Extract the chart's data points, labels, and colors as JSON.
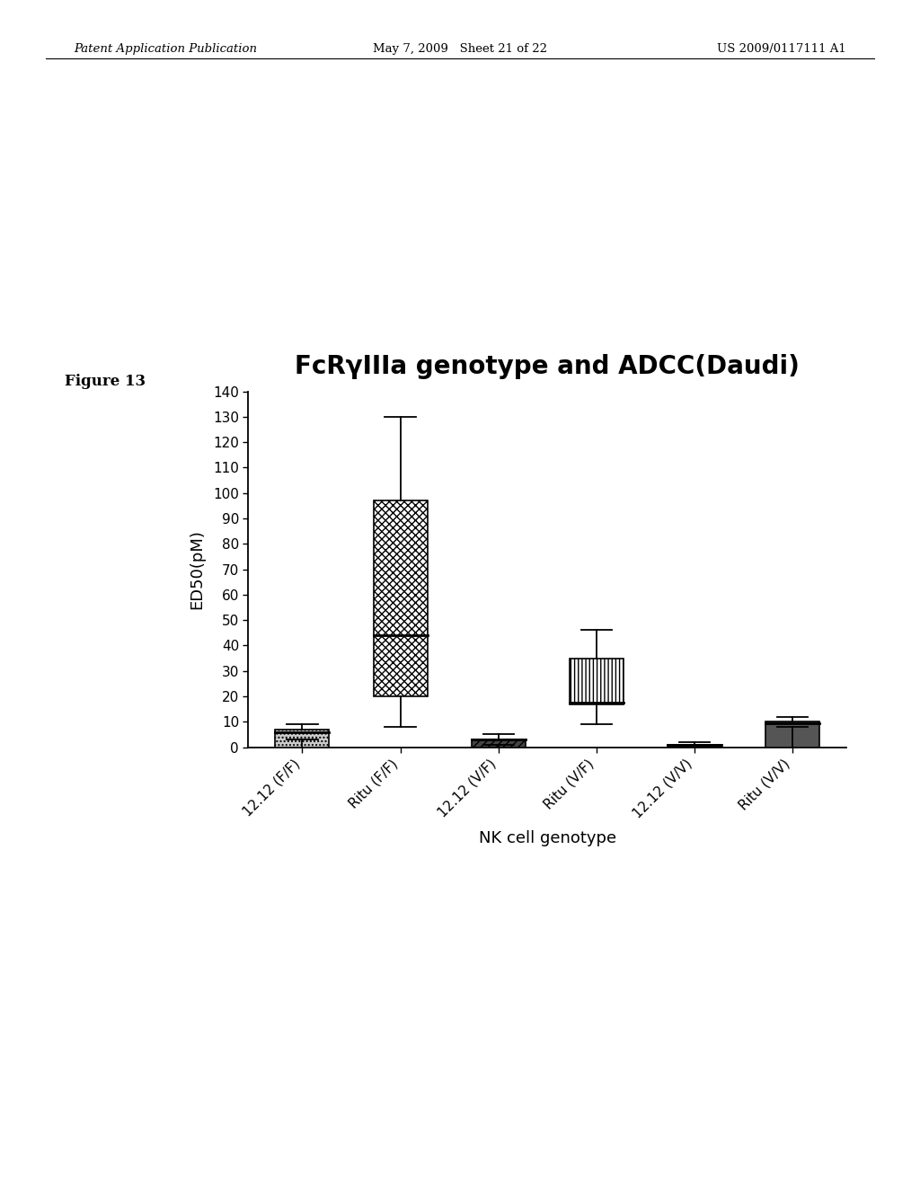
{
  "title": "FcRγIIIa genotype and ADCC(Daudi)",
  "xlabel": "NK cell genotype",
  "ylabel": "ED50(pM)",
  "categories": [
    "12.12 (F/F)",
    "Ritu (F/F)",
    "12.12 (V/F)",
    "Ritu (V/F)",
    "12.12 (V/V)",
    "Ritu (V/V)"
  ],
  "bar_bottoms": [
    0,
    20,
    0,
    17,
    0,
    0
  ],
  "bar_heights": [
    7,
    77,
    3,
    18,
    1,
    10
  ],
  "bar_medians": [
    6,
    44,
    3,
    17.5,
    1,
    9.5
  ],
  "whisker_lo": [
    3,
    8,
    1,
    9,
    0.5,
    8
  ],
  "whisker_hi": [
    9,
    130,
    5,
    46,
    2,
    12
  ],
  "ylim": [
    0,
    140
  ],
  "yticks": [
    0,
    10,
    20,
    30,
    40,
    50,
    60,
    70,
    80,
    90,
    100,
    110,
    120,
    130,
    140
  ],
  "background_color": "#ffffff",
  "header_left": "Patent Application Publication",
  "header_mid": "May 7, 2009   Sheet 21 of 22",
  "header_right": "US 2009/0117111 A1",
  "figure_label": "Figure 13",
  "bar_width": 0.55,
  "title_fontsize": 20,
  "axis_label_fontsize": 13,
  "tick_fontsize": 11
}
